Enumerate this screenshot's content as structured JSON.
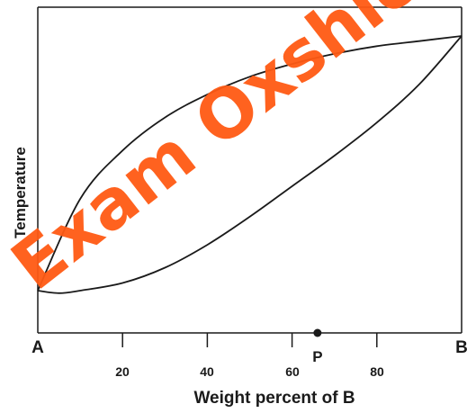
{
  "diagram": {
    "y_axis_label": "Temperature",
    "x_axis_label": "Weight percent of B",
    "end_labels": {
      "left": "A",
      "right": "B"
    },
    "ticks": [
      "20",
      "40",
      "60",
      "80"
    ],
    "point_label": "P",
    "point_value": 66,
    "watermark": "Exam Oxshiedu"
  },
  "chart_data": {
    "type": "line",
    "xlabel": "Weight percent of B",
    "ylabel": "Temperature",
    "xlim": [
      0,
      100
    ],
    "x_ticks": [
      20,
      40,
      60,
      80
    ],
    "series": [
      {
        "x": [
          0,
          10,
          20,
          30,
          40,
          50,
          60,
          70,
          80,
          90,
          100
        ],
        "y": [
          0.0,
          0.36,
          0.55,
          0.68,
          0.77,
          0.84,
          0.89,
          0.93,
          0.96,
          0.98,
          1.0
        ]
      },
      {
        "x": [
          0,
          5,
          10,
          20,
          30,
          40,
          50,
          60,
          70,
          80,
          90,
          100
        ],
        "y": [
          0.0,
          -0.01,
          0.0,
          0.03,
          0.09,
          0.18,
          0.29,
          0.41,
          0.53,
          0.66,
          0.81,
          1.0
        ]
      }
    ],
    "marker_x": 66
  },
  "colors": {
    "line": "#1a1a1a",
    "watermark": "#ff5a14"
  }
}
